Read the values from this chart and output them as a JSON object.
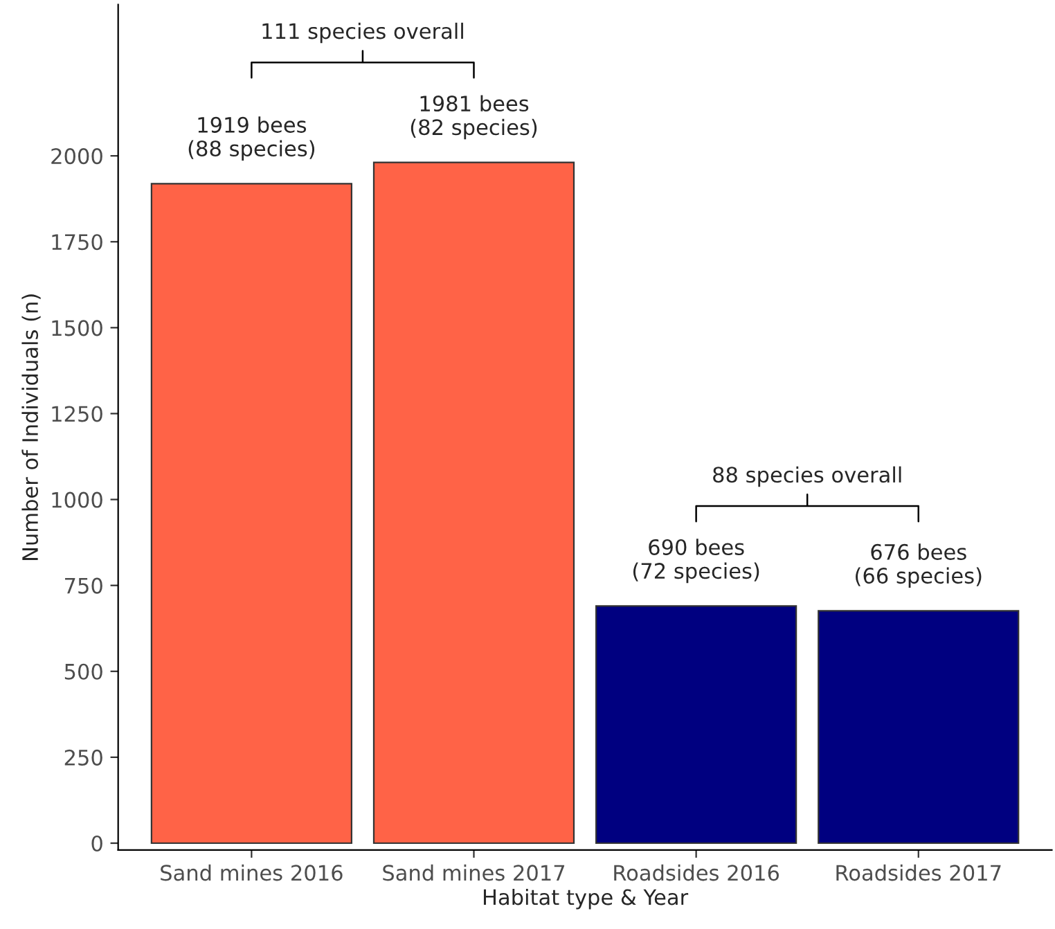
{
  "chart_data": {
    "type": "bar",
    "xlabel": "Habitat type & Year",
    "ylabel": "Number of Individuals (n)",
    "categories": [
      "Sand mines 2016",
      "Sand mines 2017",
      "Roadsides 2016",
      "Roadsides 2017"
    ],
    "values": [
      1919,
      1981,
      690,
      676
    ],
    "colors": [
      "#ff6347",
      "#ff6347",
      "#000080",
      "#000080"
    ],
    "value_labels": [
      "1919 bees\n(88 species)",
      "1981 bees\n(82 species)",
      "690 bees\n(72 species)",
      "676 bees\n(66 species)"
    ],
    "annotations": [
      "111 species overall",
      "88 species overall"
    ],
    "ylim": [
      -20,
      2440
    ],
    "yticks": [
      0,
      250,
      500,
      750,
      1000,
      1250,
      1500,
      1750,
      2000
    ],
    "grid": false
  }
}
